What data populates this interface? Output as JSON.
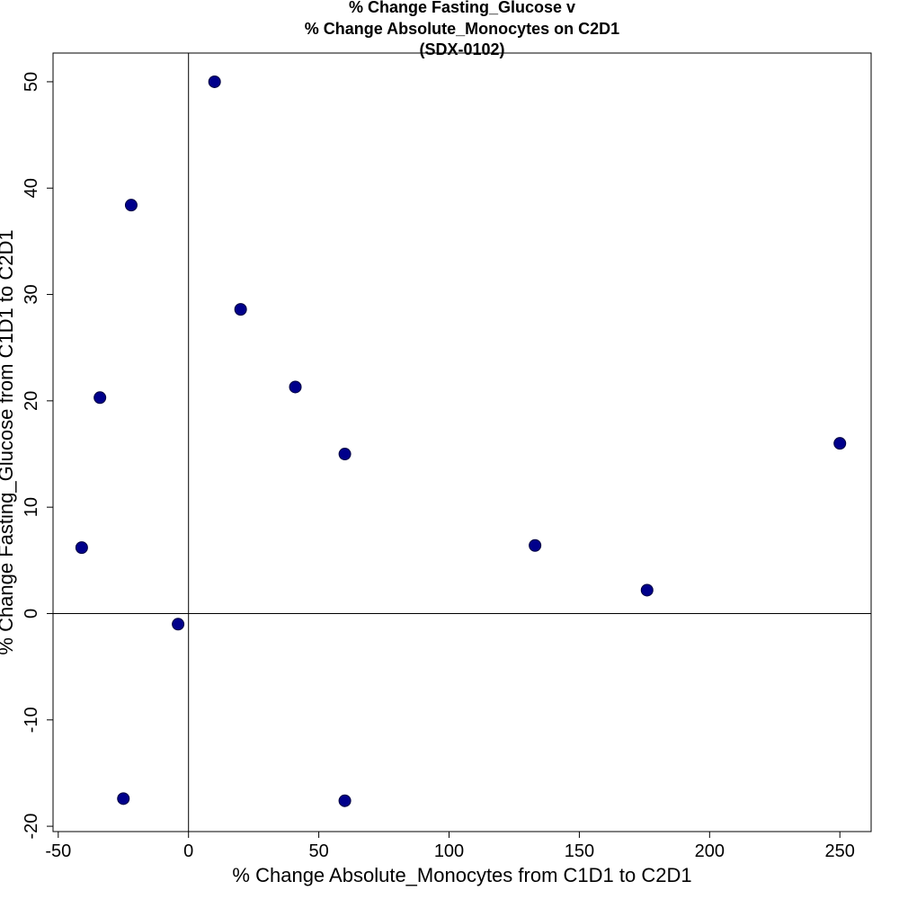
{
  "chart_data": {
    "type": "scatter",
    "title_lines": [
      "% Change Fasting_Glucose v",
      "% Change Absolute_Monocytes on C2D1",
      "(SDX-0102)"
    ],
    "xlabel": "% Change Absolute_Monocytes from C1D1 to C2D1",
    "ylabel": "% Change Fasting_Glucose from C1D1 to C2D1",
    "xlim": [
      -52,
      262
    ],
    "ylim": [
      -20.5,
      52.7
    ],
    "x_ticks": [
      -50,
      0,
      50,
      100,
      150,
      200,
      250
    ],
    "y_ticks": [
      -20,
      -10,
      0,
      10,
      20,
      30,
      40,
      50
    ],
    "reference_lines": {
      "x": 0,
      "y": 0
    },
    "grid": false,
    "marker_color": "#00008b",
    "points": [
      {
        "x": 10,
        "y": 50
      },
      {
        "x": -22,
        "y": 38.4
      },
      {
        "x": 20,
        "y": 28.6
      },
      {
        "x": -34,
        "y": 20.3
      },
      {
        "x": 41,
        "y": 21.3
      },
      {
        "x": 60,
        "y": 15
      },
      {
        "x": 250,
        "y": 16
      },
      {
        "x": -41,
        "y": 6.2
      },
      {
        "x": 133,
        "y": 6.4
      },
      {
        "x": 176,
        "y": 2.2
      },
      {
        "x": -4,
        "y": -1
      },
      {
        "x": -25,
        "y": -17.4
      },
      {
        "x": 60,
        "y": -17.6
      }
    ]
  }
}
